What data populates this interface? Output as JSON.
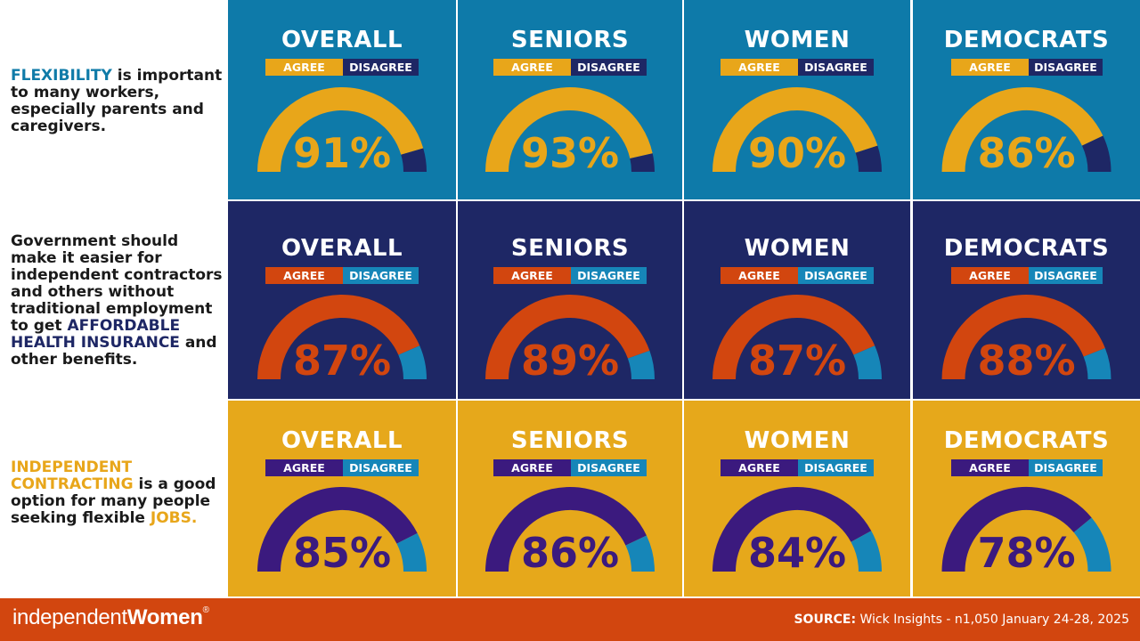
{
  "chart_data": {
    "type": "gauge",
    "groups": [
      "OVERALL",
      "SENIORS",
      "WOMEN",
      "DEMOCRATS"
    ],
    "legend": [
      "AGREE",
      "DISAGREE"
    ],
    "rows": [
      {
        "statement": [
          {
            "text": "FLEXIBILITY",
            "hl": "#0f7ba8"
          },
          {
            "text": " is important to many workers, especially parents and caregivers."
          }
        ],
        "bg": "#0e7aa9",
        "agree_color": "#e8a61a",
        "disagree_color": "#1e2765",
        "agree_label_bg": "#e8a61a",
        "disagree_label_bg": "#1e2765",
        "pct_color": "#e8a61a",
        "values": [
          91,
          93,
          90,
          86
        ],
        "labels": [
          "91%",
          "93%",
          "90%",
          "86%"
        ]
      },
      {
        "statement": [
          {
            "text": "Government should make it easier for independent contractors and others without traditional employment to get "
          },
          {
            "text": "AFFORDABLE HEALTH INSURANCE",
            "hl": "#1e2765"
          },
          {
            "text": " and other benefits."
          }
        ],
        "bg": "#1e2765",
        "agree_color": "#d2460f",
        "disagree_color": "#1686b8",
        "agree_label_bg": "#d2460f",
        "disagree_label_bg": "#1686b8",
        "pct_color": "#d2460f",
        "values": [
          87,
          89,
          87,
          88
        ],
        "labels": [
          "87%",
          "89%",
          "87%",
          "88%"
        ]
      },
      {
        "statement": [
          {
            "text": "INDEPENDENT CONTRACTING",
            "hl": "#e8a61a"
          },
          {
            "text": " is a good option for many people seeking flexible "
          },
          {
            "text": "JOBS.",
            "hl": "#e8a61a"
          }
        ],
        "bg": "#e6a81b",
        "agree_color": "#3b1a7e",
        "disagree_color": "#1686b8",
        "agree_label_bg": "#3b1a7e",
        "disagree_label_bg": "#1686b8",
        "pct_color": "#3b1a7e",
        "values": [
          85,
          86,
          84,
          78
        ],
        "labels": [
          "85%",
          "86%",
          "84%",
          "78%"
        ]
      }
    ]
  },
  "footer": {
    "brand_light": "independent",
    "brand_bold": "Women",
    "brand_mark": "®",
    "source_label": "SOURCE:",
    "source_text": " Wick Insights - n1,050 January 24-28, 2025"
  }
}
